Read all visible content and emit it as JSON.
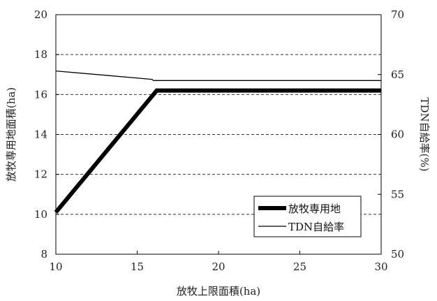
{
  "chart_data": {
    "type": "line",
    "x_axis": {
      "label": "放牧上限面積(ha)",
      "range": [
        10,
        30
      ],
      "ticks": [
        10,
        15,
        20,
        25,
        30
      ]
    },
    "y_axis_left": {
      "label": "放牧専用地面積(ha)",
      "range": [
        8,
        20
      ],
      "ticks": [
        8,
        10,
        12,
        14,
        16,
        18,
        20
      ]
    },
    "y_axis_right": {
      "label": "TDN自給率(%)",
      "range": [
        50,
        70
      ],
      "ticks": [
        50,
        55,
        60,
        65,
        70
      ]
    },
    "grid": "horizontal dashed lines at left-axis ticks 10-18",
    "legend_position": "bottom-right",
    "series": [
      {
        "name": "放牧専用地",
        "axis": "left",
        "style": "thick",
        "color": "#000000",
        "x": [
          10,
          16.2,
          30
        ],
        "y": [
          10.1,
          16.2,
          16.2
        ]
      },
      {
        "name": "TDN自給率",
        "axis": "right",
        "style": "thin",
        "color": "#000000",
        "x": [
          10,
          15.9,
          16,
          30
        ],
        "y": [
          65.3,
          64.6,
          64.5,
          64.5
        ]
      }
    ]
  }
}
